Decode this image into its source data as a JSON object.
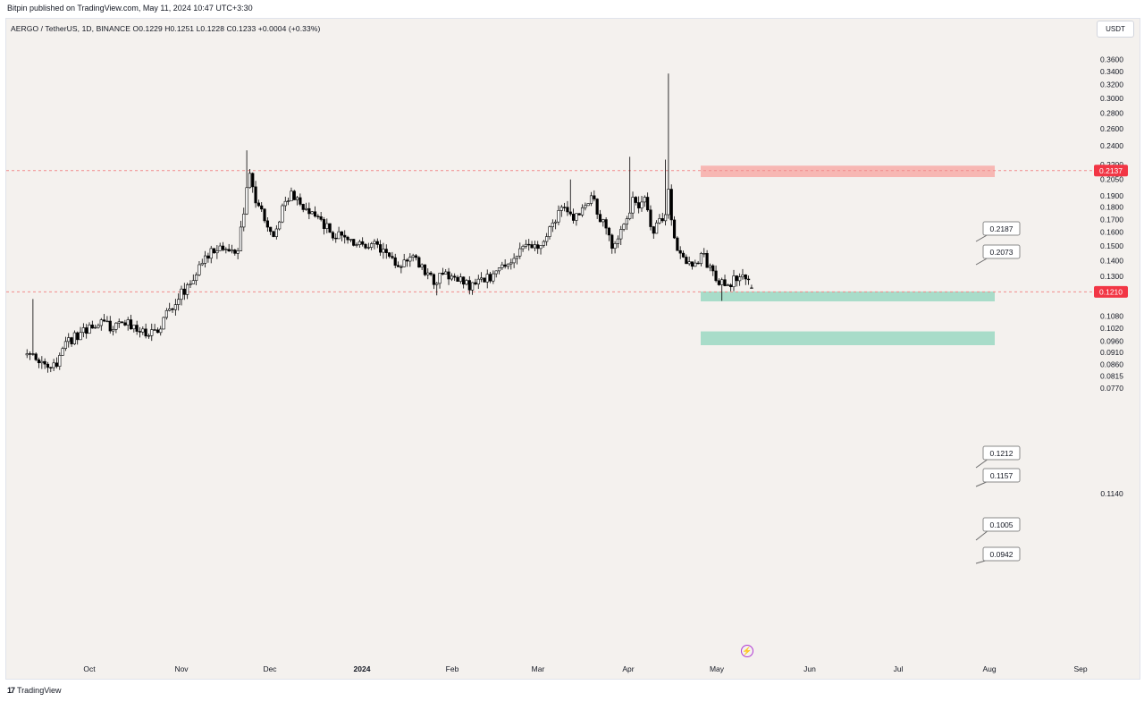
{
  "header": {
    "publisher": "Bitpin published on TradingView.com, May 11, 2024 10:47 UTC+3:30",
    "symbol_line": "AERGO / TetherUS, 1D, BINANCE  O0.1229  H0.1251  L0.1228  C0.1233  +0.0004 (+0.33%)",
    "unit": "USDT"
  },
  "footer": {
    "logo_mark": "17",
    "brand": "TradingView"
  },
  "colors": {
    "background": "#f4f1ee",
    "candle": "#000000",
    "resistance_zone": "#f7b7b3",
    "support_zone": "#a8dcc9",
    "dashed_line": "#f28b8b",
    "price_badge": "#f23645"
  },
  "chart_data": {
    "type": "candlestick",
    "title": "AERGO / TetherUS, 1D, BINANCE",
    "ylabel": "USDT",
    "y_scale": "log",
    "ylim": [
      0.0738,
      0.385
    ],
    "x_ticks": [
      "Oct",
      "Nov",
      "Dec",
      "2024",
      "Feb",
      "Mar",
      "Apr",
      "May",
      "Jun",
      "Jul",
      "Aug",
      "Sep"
    ],
    "y_ticks": [
      0.36,
      0.34,
      0.32,
      0.3,
      0.28,
      0.26,
      0.24,
      0.22,
      0.205,
      0.19,
      0.18,
      0.17,
      0.16,
      0.15,
      0.14,
      0.13,
      0.122,
      0.108,
      0.102,
      0.096,
      0.091,
      0.086,
      0.0815,
      0.077
    ],
    "y_tick_labels": [
      "0.3600",
      "0.3400",
      "0.3200",
      "0.3000",
      "0.2800",
      "0.2600",
      "0.2400",
      "0.2200",
      "0.2050",
      "0.1900",
      "0.1800",
      "0.1700",
      "0.1600",
      "0.1500",
      "0.1400",
      "0.1300",
      "0.1220",
      "0.1080",
      "0.1020",
      "0.0960",
      "0.0910",
      "0.0860",
      "0.0815",
      "0.0770"
    ],
    "horizontal_lines": [
      {
        "value": 0.2137,
        "label": "0.2137",
        "style": "dashed"
      },
      {
        "value": 0.121,
        "label": "0.1210",
        "style": "dashed"
      }
    ],
    "hidden_axis_label": "0.1140",
    "zones": [
      {
        "name": "resistance",
        "top": 0.2187,
        "bottom": 0.2073,
        "labels": [
          "0.2187",
          "0.2073"
        ]
      },
      {
        "name": "support",
        "top": 0.1212,
        "bottom": 0.1157,
        "labels": [
          "0.1212",
          "0.1157"
        ]
      },
      {
        "name": "support",
        "top": 0.1005,
        "bottom": 0.0942,
        "labels": [
          "0.1005",
          "0.0942"
        ]
      }
    ],
    "last": {
      "open": 0.1229,
      "high": 0.1251,
      "low": 0.1228,
      "close": 0.1233,
      "change": 0.0004,
      "change_pct": 0.33
    },
    "price_path": [
      [
        "2023-09-10",
        0.09
      ],
      [
        "2023-09-15",
        0.088
      ],
      [
        "2023-09-19",
        0.085
      ],
      [
        "2023-09-23",
        0.094
      ],
      [
        "2023-09-27",
        0.099
      ],
      [
        "2023-10-02",
        0.103
      ],
      [
        "2023-10-06",
        0.104
      ],
      [
        "2023-10-10",
        0.102
      ],
      [
        "2023-10-14",
        0.105
      ],
      [
        "2023-10-19",
        0.1
      ],
      [
        "2023-10-24",
        0.101
      ],
      [
        "2023-10-28",
        0.112
      ],
      [
        "2023-11-01",
        0.12
      ],
      [
        "2023-11-04",
        0.127
      ],
      [
        "2023-11-08",
        0.137
      ],
      [
        "2023-11-11",
        0.148
      ],
      [
        "2023-11-14",
        0.15
      ],
      [
        "2023-11-18",
        0.145
      ],
      [
        "2023-11-20",
        0.148
      ],
      [
        "2023-11-22",
        0.175
      ],
      [
        "2023-11-24",
        0.21
      ],
      [
        "2023-11-26",
        0.185
      ],
      [
        "2023-11-29",
        0.17
      ],
      [
        "2023-12-02",
        0.155
      ],
      [
        "2023-12-05",
        0.18
      ],
      [
        "2023-12-08",
        0.195
      ],
      [
        "2023-12-10",
        0.185
      ],
      [
        "2023-12-13",
        0.175
      ],
      [
        "2023-12-17",
        0.172
      ],
      [
        "2023-12-21",
        0.16
      ],
      [
        "2023-12-26",
        0.155
      ],
      [
        "2024-01-01",
        0.152
      ],
      [
        "2024-01-05",
        0.152
      ],
      [
        "2024-01-09",
        0.145
      ],
      [
        "2024-01-13",
        0.138
      ],
      [
        "2024-01-17",
        0.142
      ],
      [
        "2024-01-21",
        0.136
      ],
      [
        "2024-01-25",
        0.127
      ],
      [
        "2024-01-29",
        0.131
      ],
      [
        "2024-02-02",
        0.128
      ],
      [
        "2024-02-06",
        0.124
      ],
      [
        "2024-02-10",
        0.127
      ],
      [
        "2024-02-14",
        0.131
      ],
      [
        "2024-02-18",
        0.137
      ],
      [
        "2024-02-22",
        0.144
      ],
      [
        "2024-02-26",
        0.15
      ],
      [
        "2024-02-29",
        0.148
      ],
      [
        "2024-03-03",
        0.155
      ],
      [
        "2024-03-06",
        0.172
      ],
      [
        "2024-03-09",
        0.178
      ],
      [
        "2024-03-12",
        0.17
      ],
      [
        "2024-03-15",
        0.18
      ],
      [
        "2024-03-18",
        0.19
      ],
      [
        "2024-03-20",
        0.175
      ],
      [
        "2024-03-23",
        0.162
      ],
      [
        "2024-03-25",
        0.15
      ],
      [
        "2024-03-27",
        0.158
      ],
      [
        "2024-03-29",
        0.165
      ],
      [
        "2024-04-01",
        0.185
      ],
      [
        "2024-04-03",
        0.178
      ],
      [
        "2024-04-05",
        0.185
      ],
      [
        "2024-04-08",
        0.16
      ],
      [
        "2024-04-10",
        0.168
      ],
      [
        "2024-04-12",
        0.172
      ],
      [
        "2024-04-13",
        0.2
      ],
      [
        "2024-04-14",
        0.168
      ],
      [
        "2024-04-16",
        0.148
      ],
      [
        "2024-04-19",
        0.14
      ],
      [
        "2024-04-22",
        0.138
      ],
      [
        "2024-04-24",
        0.145
      ],
      [
        "2024-04-27",
        0.135
      ],
      [
        "2024-04-30",
        0.128
      ],
      [
        "2024-05-03",
        0.122
      ],
      [
        "2024-05-05",
        0.128
      ],
      [
        "2024-05-08",
        0.13
      ],
      [
        "2024-05-11",
        0.1233
      ]
    ]
  }
}
